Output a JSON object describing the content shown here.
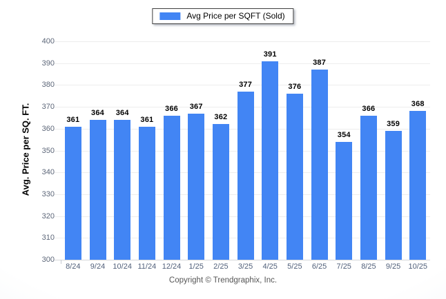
{
  "legend": {
    "label": "Avg Price per SQFT (Sold)",
    "swatch_color": "#4285F4"
  },
  "chart_data": {
    "type": "bar",
    "title": "",
    "categories": [
      "8/24",
      "9/24",
      "10/24",
      "11/24",
      "12/24",
      "1/25",
      "2/25",
      "3/25",
      "4/25",
      "5/25",
      "6/25",
      "7/25",
      "8/25",
      "9/25",
      "10/25"
    ],
    "series": [
      {
        "name": "Avg Price per SQFT (Sold)",
        "values": [
          361,
          364,
          364,
          361,
          366,
          367,
          362,
          377,
          391,
          376,
          387,
          354,
          366,
          359,
          368
        ]
      }
    ],
    "xlabel": "",
    "ylabel": "Avg. Price per SQ. FT.",
    "ylim": [
      300,
      400
    ],
    "ytick_step": 10,
    "bar_color": "#4285F4",
    "grid": "horizontal",
    "legend_position": "top-center",
    "value_labels": true
  },
  "footer": {
    "copyright": "Copyright © Trendgraphix, Inc."
  }
}
